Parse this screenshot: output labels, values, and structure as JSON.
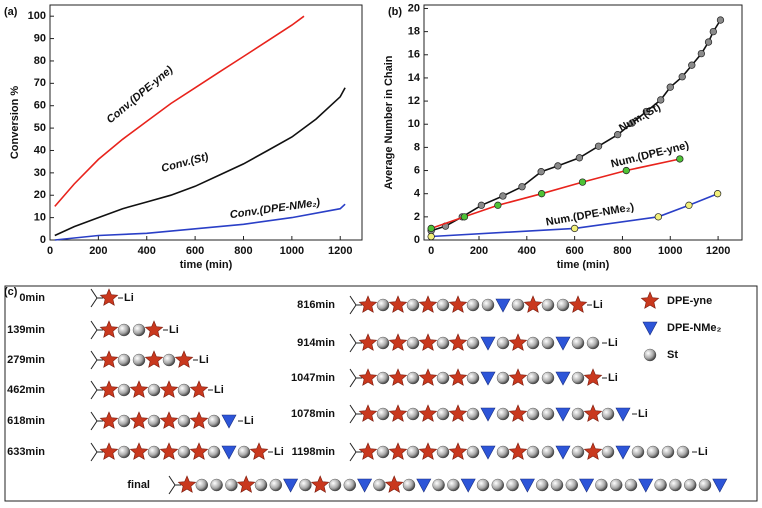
{
  "chart_data": [
    {
      "type": "line",
      "label": "(a)",
      "xlabel": "time (min)",
      "ylabel": "Conversion %",
      "xlim": [
        0,
        1290
      ],
      "xticks": [
        0,
        200,
        400,
        600,
        800,
        1000,
        1200
      ],
      "ylim": [
        0,
        105
      ],
      "yticks": [
        0,
        10,
        20,
        30,
        40,
        50,
        60,
        70,
        80,
        90,
        100
      ],
      "series": [
        {
          "name": "Conv.(DPE-yne)",
          "color": "#e8231c",
          "x": [
            20,
            100,
            200,
            300,
            400,
            500,
            600,
            700,
            800,
            900,
            1000,
            1050
          ],
          "values": [
            15,
            25,
            36,
            45,
            53,
            61,
            68,
            75,
            82,
            89,
            96,
            100
          ]
        },
        {
          "name": "Conv.(St)",
          "color": "#111111",
          "x": [
            20,
            100,
            200,
            300,
            400,
            500,
            600,
            700,
            800,
            900,
            1000,
            1100,
            1200,
            1220
          ],
          "values": [
            2,
            6,
            10,
            14,
            17,
            20,
            24,
            29,
            34,
            40,
            46,
            54,
            64,
            68
          ]
        },
        {
          "name": "Conv.(DPE-NMe₂)",
          "color": "#2a3fc7",
          "x": [
            20,
            200,
            400,
            600,
            800,
            1000,
            1200,
            1220
          ],
          "values": [
            0,
            2,
            3,
            5,
            7,
            10,
            14,
            16
          ]
        }
      ]
    },
    {
      "type": "line",
      "label": "(b)",
      "xlabel": "time (min)",
      "ylabel": "Average Number in Chain",
      "xlim": [
        -30,
        1300
      ],
      "xticks": [
        0,
        200,
        400,
        600,
        800,
        1000,
        1200
      ],
      "ylim": [
        0,
        20.3
      ],
      "yticks": [
        0,
        2,
        4,
        6,
        8,
        10,
        12,
        14,
        16,
        18,
        20
      ],
      "series": [
        {
          "name": "Num.(St)",
          "color": "#111111",
          "marker_color": "#8a8a8a",
          "x": [
            0,
            60,
            130,
            210,
            300,
            380,
            460,
            530,
            620,
            700,
            780,
            840,
            900,
            960,
            1000,
            1050,
            1090,
            1130,
            1160,
            1180,
            1210
          ],
          "values": [
            0.8,
            1.2,
            2,
            3,
            3.8,
            4.6,
            5.9,
            6.4,
            7.1,
            8.1,
            9.1,
            10.1,
            11.1,
            12.1,
            13.2,
            14.1,
            15.1,
            16.1,
            17.1,
            18,
            19
          ]
        },
        {
          "name": "Num.(DPE-yne)",
          "color": "#e8231c",
          "marker_color": "#4fc236",
          "x": [
            0,
            139,
            279,
            462,
            633,
            816,
            1040
          ],
          "values": [
            1,
            2,
            3,
            4,
            5,
            6,
            7
          ]
        },
        {
          "name": "Num.(DPE-NMe₂)",
          "color": "#2a3fc7",
          "marker_color": "#f2f07a",
          "x": [
            0,
            600,
            950,
            1078,
            1198
          ],
          "values": [
            0.3,
            1,
            2,
            3,
            4
          ]
        }
      ]
    }
  ],
  "diagram": {
    "label": "(c)",
    "rows": [
      {
        "time": "0min",
        "end": "Li"
      },
      {
        "time": "139min",
        "end": "Li"
      },
      {
        "time": "279min",
        "end": "Li"
      },
      {
        "time": "462min",
        "end": "Li"
      },
      {
        "time": "618min",
        "end": "Li"
      },
      {
        "time": "633min",
        "end": "Li"
      },
      {
        "time": "816min",
        "end": "Li"
      },
      {
        "time": "914min",
        "end": "Li"
      },
      {
        "time": "1047min",
        "end": "Li"
      },
      {
        "time": "1078min",
        "end": "Li"
      },
      {
        "time": "1198min",
        "end": "Li"
      },
      {
        "time": "final"
      }
    ],
    "legend": [
      "DPE-yne",
      "DPE-NMe₂",
      "St"
    ]
  }
}
